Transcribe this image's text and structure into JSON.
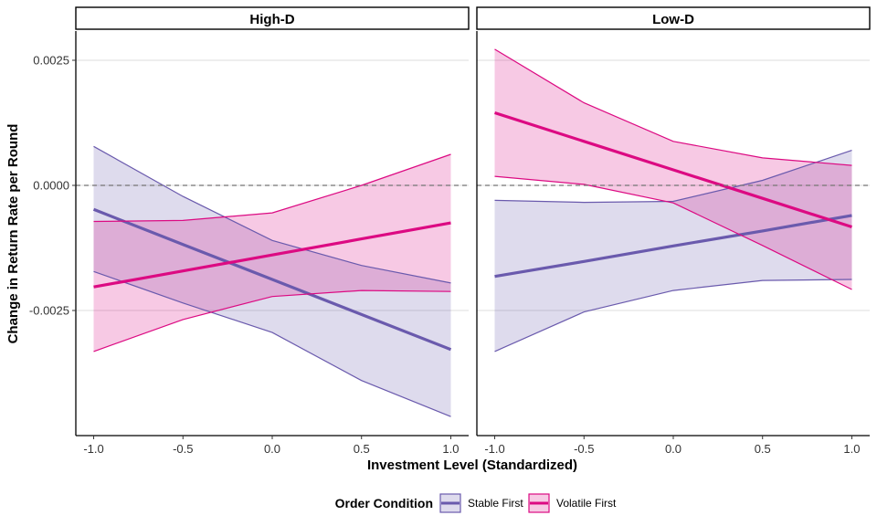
{
  "chart_data": {
    "type": "line",
    "xlabel": "Investment Level (Standardized)",
    "ylabel": "Change in Return Rate per Round",
    "xlim": [
      -1.1,
      1.1
    ],
    "ylim": [
      -0.005,
      0.003
    ],
    "x_ticks": [
      -1.0,
      -0.5,
      0.0,
      0.5,
      1.0
    ],
    "x_tick_labels": [
      "-1.0",
      "-0.5",
      "0.0",
      "0.5",
      "1.0"
    ],
    "y_ticks": [
      0.0025,
      0.0,
      -0.0025
    ],
    "y_tick_labels": [
      "0.0025",
      "0.0000",
      "-0.0025"
    ],
    "reference_line": {
      "y": 0.0,
      "style": "dashed"
    },
    "grid": "horizontal major",
    "legend": {
      "title": "Order Condition",
      "position": "bottom",
      "entries": [
        "Stable First",
        "Volatile First"
      ]
    },
    "colors": {
      "Stable First": "#6a5aad",
      "Volatile First": "#dc0a82"
    },
    "panels": [
      {
        "label": "High-D",
        "series": [
          {
            "name": "Stable First",
            "x": [
              -1.0,
              -0.5,
              0.0,
              0.5,
              1.0
            ],
            "fit": [
              -0.00048,
              -0.00118,
              -0.00188,
              -0.00258,
              -0.00328
            ],
            "lower": [
              -0.00172,
              -0.00235,
              -0.00294,
              -0.0039,
              -0.00462
            ],
            "upper": [
              0.00078,
              -0.00022,
              -0.0011,
              -0.0016,
              -0.00195
            ]
          },
          {
            "name": "Volatile First",
            "x": [
              -1.0,
              -0.5,
              0.0,
              0.5,
              1.0
            ],
            "fit": [
              -0.00203,
              -0.00171,
              -0.00139,
              -0.00107,
              -0.00075
            ],
            "lower": [
              -0.00332,
              -0.00268,
              -0.00222,
              -0.0021,
              -0.00212
            ],
            "upper": [
              -0.00072,
              -0.0007,
              -0.00055,
              0.0,
              0.00062
            ]
          }
        ]
      },
      {
        "label": "Low-D",
        "series": [
          {
            "name": "Stable First",
            "x": [
              -1.0,
              -0.5,
              0.0,
              0.5,
              1.0
            ],
            "fit": [
              -0.00182,
              -0.00152,
              -0.00121,
              -0.00091,
              -0.0006
            ],
            "lower": [
              -0.00332,
              -0.00253,
              -0.0021,
              -0.0019,
              -0.00188
            ],
            "upper": [
              -0.0003,
              -0.00034,
              -0.00032,
              0.0001,
              0.0007
            ]
          },
          {
            "name": "Volatile First",
            "x": [
              -1.0,
              -0.5,
              0.0,
              0.5,
              1.0
            ],
            "fit": [
              0.00145,
              0.00088,
              0.00031,
              -0.00026,
              -0.00083
            ],
            "lower": [
              0.00018,
              2e-05,
              -0.00035,
              -0.0012,
              -0.00208
            ],
            "upper": [
              0.00272,
              0.00165,
              0.00088,
              0.00055,
              0.0004
            ]
          }
        ]
      }
    ]
  }
}
